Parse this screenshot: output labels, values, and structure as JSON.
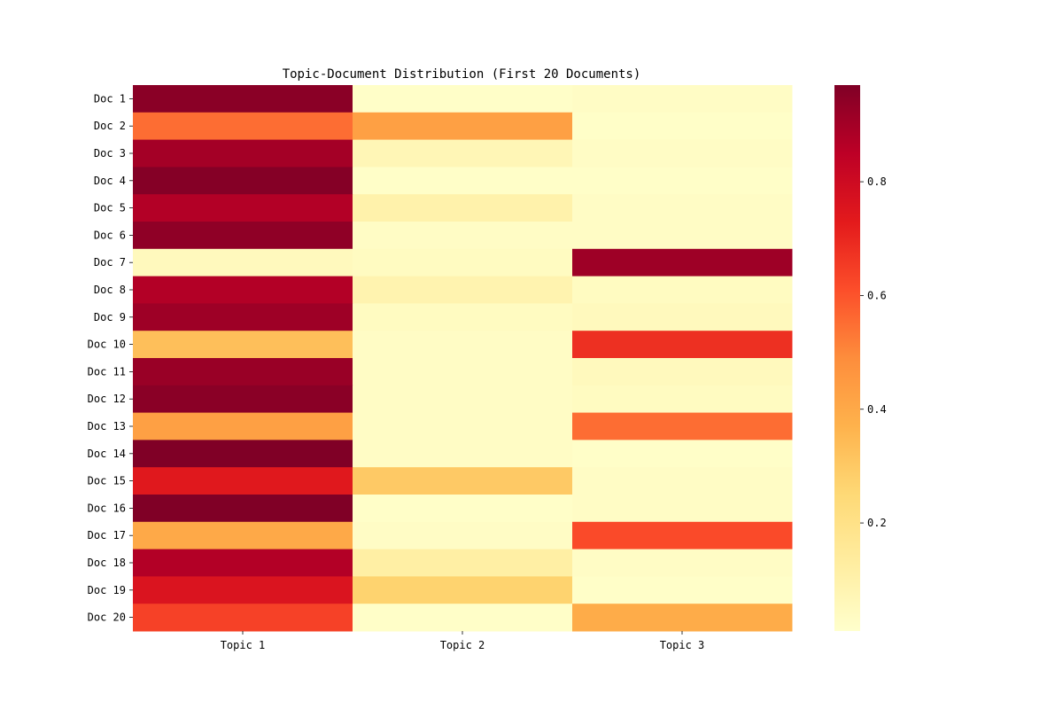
{
  "chart_data": {
    "type": "heatmap",
    "title": "Topic-Document Distribution (First 20 Documents)",
    "xlabel": "",
    "ylabel": "",
    "x_categories": [
      "Topic 1",
      "Topic 2",
      "Topic 3"
    ],
    "y_categories": [
      "Doc 1",
      "Doc 2",
      "Doc 3",
      "Doc 4",
      "Doc 5",
      "Doc 6",
      "Doc 7",
      "Doc 8",
      "Doc 9",
      "Doc 10",
      "Doc 11",
      "Doc 12",
      "Doc 13",
      "Doc 14",
      "Doc 15",
      "Doc 16",
      "Doc 17",
      "Doc 18",
      "Doc 19",
      "Doc 20"
    ],
    "values": [
      [
        0.95,
        0.02,
        0.03
      ],
      [
        0.55,
        0.43,
        0.02
      ],
      [
        0.9,
        0.07,
        0.03
      ],
      [
        0.96,
        0.02,
        0.02
      ],
      [
        0.87,
        0.1,
        0.03
      ],
      [
        0.94,
        0.03,
        0.03
      ],
      [
        0.05,
        0.04,
        0.91
      ],
      [
        0.87,
        0.09,
        0.04
      ],
      [
        0.91,
        0.04,
        0.05
      ],
      [
        0.33,
        0.03,
        0.68
      ],
      [
        0.92,
        0.03,
        0.05
      ],
      [
        0.95,
        0.03,
        0.04
      ],
      [
        0.43,
        0.03,
        0.55
      ],
      [
        0.97,
        0.03,
        0.02
      ],
      [
        0.74,
        0.3,
        0.03
      ],
      [
        0.97,
        0.02,
        0.03
      ],
      [
        0.4,
        0.03,
        0.62
      ],
      [
        0.87,
        0.12,
        0.03
      ],
      [
        0.76,
        0.27,
        0.02
      ],
      [
        0.64,
        0.02,
        0.39
      ]
    ],
    "colorbar": {
      "min": 0.01,
      "max": 0.97,
      "ticks": [
        0.2,
        0.4,
        0.6,
        0.8
      ],
      "tick_labels": [
        "0.2",
        "0.4",
        "0.6",
        "0.8"
      ],
      "colormap": "YlOrRd"
    }
  }
}
